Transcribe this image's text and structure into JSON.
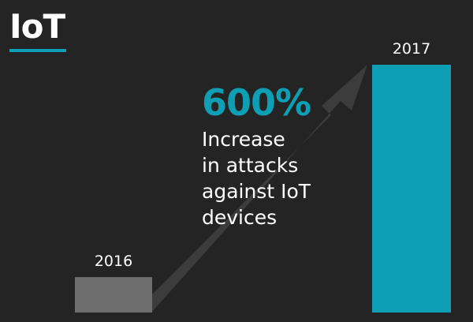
{
  "header": {
    "title": "IoT"
  },
  "callout": {
    "headline": "600%",
    "lines": [
      "Increase",
      "in attacks",
      "against IoT",
      "devices"
    ]
  },
  "colors": {
    "accent": "#0e9fb4",
    "bar_2016": "#6e6e6e",
    "arrow": "#3c3c3c",
    "background": "#242424",
    "text": "#ffffff"
  },
  "chart_data": {
    "type": "bar",
    "categories": [
      "2016",
      "2017"
    ],
    "values": [
      1,
      7
    ],
    "ylim": [
      0,
      7
    ],
    "grid": false,
    "legend": "none"
  }
}
